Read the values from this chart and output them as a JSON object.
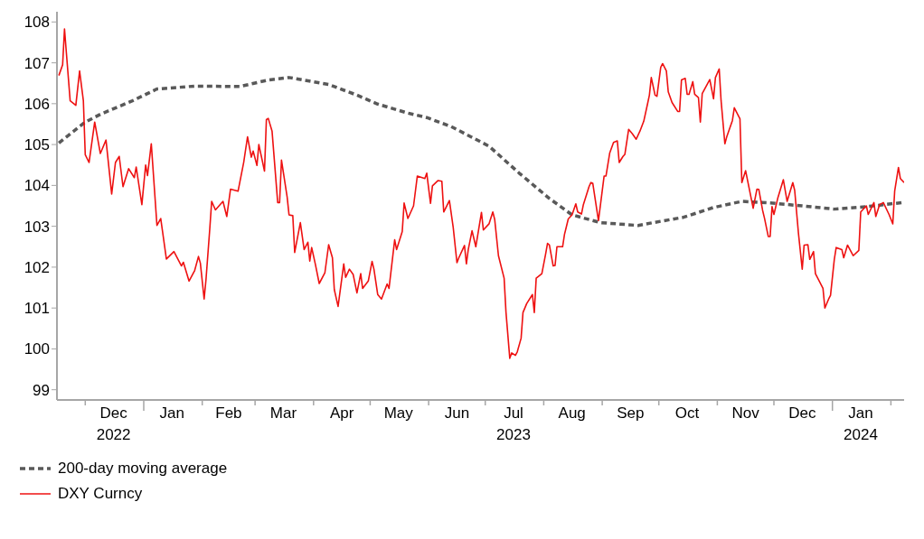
{
  "chart_data": {
    "type": "line",
    "xlim": [
      "2022-11-16",
      "2024-02-08"
    ],
    "ylim": [
      98.75,
      108.25
    ],
    "yticks": [
      99,
      100,
      101,
      102,
      103,
      104,
      105,
      106,
      107,
      108
    ],
    "xticks": [
      {
        "value": "2022-12-01",
        "label": null
      },
      {
        "value": "2022-12-16",
        "label": "Dec\n2022"
      },
      {
        "value": "2023-01-01",
        "label": null
      },
      {
        "value": "2023-01-16",
        "label": "Jan"
      },
      {
        "value": "2023-02-01",
        "label": null
      },
      {
        "value": "2023-02-15",
        "label": "Feb"
      },
      {
        "value": "2023-03-01",
        "label": null
      },
      {
        "value": "2023-03-16",
        "label": "Mar"
      },
      {
        "value": "2023-04-01",
        "label": null
      },
      {
        "value": "2023-04-16",
        "label": "Apr"
      },
      {
        "value": "2023-05-01",
        "label": null
      },
      {
        "value": "2023-05-16",
        "label": "May"
      },
      {
        "value": "2023-06-01",
        "label": null
      },
      {
        "value": "2023-06-16",
        "label": "Jun"
      },
      {
        "value": "2023-07-01",
        "label": null
      },
      {
        "value": "2023-07-16",
        "label": "Jul\n2023"
      },
      {
        "value": "2023-08-01",
        "label": null
      },
      {
        "value": "2023-08-16",
        "label": "Aug"
      },
      {
        "value": "2023-09-01",
        "label": null
      },
      {
        "value": "2023-09-16",
        "label": "Sep"
      },
      {
        "value": "2023-10-01",
        "label": null
      },
      {
        "value": "2023-10-16",
        "label": "Oct"
      },
      {
        "value": "2023-11-01",
        "label": null
      },
      {
        "value": "2023-11-16",
        "label": "Nov"
      },
      {
        "value": "2023-12-01",
        "label": null
      },
      {
        "value": "2023-12-16",
        "label": "Dec"
      },
      {
        "value": "2024-01-01",
        "label": null
      },
      {
        "value": "2024-01-16",
        "label": "Jan\n2024"
      },
      {
        "value": "2024-02-01",
        "label": null
      }
    ],
    "grid": false,
    "legend": "bottom left",
    "marker": "none",
    "series": [
      {
        "name": "200-day moving average",
        "color": "#595959",
        "line_style": "dashed",
        "x": [
          "2022-11-17",
          "2022-12-01",
          "2022-12-09",
          "2022-12-26",
          "2023-01-08",
          "2023-01-28",
          "2023-02-21",
          "2023-03-08",
          "2023-03-19",
          "2023-04-09",
          "2023-04-24",
          "2023-05-05",
          "2023-05-21",
          "2023-05-31",
          "2023-06-13",
          "2023-07-03",
          "2023-07-19",
          "2023-08-04",
          "2023-08-16",
          "2023-08-31",
          "2023-09-20",
          "2023-09-28",
          "2023-10-14",
          "2023-10-30",
          "2023-11-14",
          "2023-11-29",
          "2023-12-16",
          "2024-01-02",
          "2024-01-19",
          "2024-02-07"
        ],
        "values": [
          105.04,
          105.55,
          105.74,
          106.07,
          106.36,
          106.43,
          106.42,
          106.58,
          106.64,
          106.47,
          106.21,
          105.99,
          105.77,
          105.66,
          105.44,
          104.96,
          104.3,
          103.68,
          103.28,
          103.09,
          103.02,
          103.09,
          103.22,
          103.46,
          103.61,
          103.57,
          103.5,
          103.42,
          103.48,
          103.58
        ]
      },
      {
        "name": "DXY Curncy",
        "color": "#ee1111",
        "line_style": "solid",
        "x": [
          "2022-11-17",
          "2022-11-19",
          "2022-11-20",
          "2022-11-21",
          "2022-11-23",
          "2022-11-26",
          "2022-11-28",
          "2022-11-30",
          "2022-12-01",
          "2022-12-03",
          "2022-12-06",
          "2022-12-09",
          "2022-12-12",
          "2022-12-15",
          "2022-12-17",
          "2022-12-19",
          "2022-12-21",
          "2022-12-24",
          "2022-12-27",
          "2022-12-28",
          "2022-12-31",
          "2023-01-02",
          "2023-01-03",
          "2023-01-05",
          "2023-01-08",
          "2023-01-10",
          "2023-01-13",
          "2023-01-17",
          "2023-01-21",
          "2023-01-22",
          "2023-01-25",
          "2023-01-28",
          "2023-01-30",
          "2023-01-31",
          "2023-02-02",
          "2023-02-03",
          "2023-02-05",
          "2023-02-06",
          "2023-02-08",
          "2023-02-12",
          "2023-02-14",
          "2023-02-16",
          "2023-02-20",
          "2023-02-23",
          "2023-02-25",
          "2023-02-27",
          "2023-02-28",
          "2023-03-02",
          "2023-03-03",
          "2023-03-06",
          "2023-03-07",
          "2023-03-08",
          "2023-03-10",
          "2023-03-13",
          "2023-03-14",
          "2023-03-15",
          "2023-03-18",
          "2023-03-19",
          "2023-03-21",
          "2023-03-22",
          "2023-03-25",
          "2023-03-27",
          "2023-03-29",
          "2023-03-30",
          "2023-03-31",
          "2023-04-02",
          "2023-04-04",
          "2023-04-07",
          "2023-04-09",
          "2023-04-11",
          "2023-04-12",
          "2023-04-14",
          "2023-04-17",
          "2023-04-18",
          "2023-04-20",
          "2023-04-22",
          "2023-04-24",
          "2023-04-26",
          "2023-04-27",
          "2023-04-30",
          "2023-05-02",
          "2023-05-03",
          "2023-05-05",
          "2023-05-07",
          "2023-05-10",
          "2023-05-11",
          "2023-05-14",
          "2023-05-15",
          "2023-05-18",
          "2023-05-19",
          "2023-05-21",
          "2023-05-24",
          "2023-05-26",
          "2023-05-30",
          "2023-05-31",
          "2023-06-02",
          "2023-06-03",
          "2023-06-06",
          "2023-06-08",
          "2023-06-09",
          "2023-06-12",
          "2023-06-14",
          "2023-06-16",
          "2023-06-17",
          "2023-06-20",
          "2023-06-21",
          "2023-06-22",
          "2023-06-24",
          "2023-06-26",
          "2023-06-29",
          "2023-06-30",
          "2023-07-03",
          "2023-07-05",
          "2023-07-06",
          "2023-07-08",
          "2023-07-11",
          "2023-07-12",
          "2023-07-14",
          "2023-07-15",
          "2023-07-17",
          "2023-07-18",
          "2023-07-20",
          "2023-07-21",
          "2023-07-23",
          "2023-07-26",
          "2023-07-27",
          "2023-07-28",
          "2023-07-31",
          "2023-08-02",
          "2023-08-03",
          "2023-08-04",
          "2023-08-06",
          "2023-08-07",
          "2023-08-08",
          "2023-08-11",
          "2023-08-12",
          "2023-08-14",
          "2023-08-16",
          "2023-08-18",
          "2023-08-19",
          "2023-08-21",
          "2023-08-22",
          "2023-08-25",
          "2023-08-26",
          "2023-08-27",
          "2023-08-30",
          "2023-09-02",
          "2023-09-03",
          "2023-09-05",
          "2023-09-07",
          "2023-09-09",
          "2023-09-10",
          "2023-09-12",
          "2023-09-13",
          "2023-09-15",
          "2023-09-17",
          "2023-09-19",
          "2023-09-21",
          "2023-09-23",
          "2023-09-25",
          "2023-09-26",
          "2023-09-27",
          "2023-09-29",
          "2023-09-30",
          "2023-10-02",
          "2023-10-03",
          "2023-10-05",
          "2023-10-06",
          "2023-10-08",
          "2023-10-11",
          "2023-10-12",
          "2023-10-13",
          "2023-10-15",
          "2023-10-16",
          "2023-10-17",
          "2023-10-19",
          "2023-10-20",
          "2023-10-22",
          "2023-10-23",
          "2023-10-24",
          "2023-10-28",
          "2023-10-30",
          "2023-10-31",
          "2023-11-02",
          "2023-11-03",
          "2023-11-05",
          "2023-11-06",
          "2023-11-09",
          "2023-11-10",
          "2023-11-13",
          "2023-11-14",
          "2023-11-16",
          "2023-11-18",
          "2023-11-20",
          "2023-11-22",
          "2023-11-23",
          "2023-11-25",
          "2023-11-26",
          "2023-11-28",
          "2023-11-29",
          "2023-11-30",
          "2023-12-01",
          "2023-12-03",
          "2023-12-06",
          "2023-12-08",
          "2023-12-11",
          "2023-12-12",
          "2023-12-14",
          "2023-12-16",
          "2023-12-17",
          "2023-12-19",
          "2023-12-20",
          "2023-12-22",
          "2023-12-23",
          "2023-12-27",
          "2023-12-28",
          "2023-12-30",
          "2023-12-31",
          "2024-01-02",
          "2024-01-03",
          "2024-01-06",
          "2024-01-07",
          "2024-01-09",
          "2024-01-12",
          "2024-01-15",
          "2024-01-16",
          "2024-01-19",
          "2024-01-20",
          "2024-01-23",
          "2024-01-24",
          "2024-01-26",
          "2024-01-28",
          "2024-01-31",
          "2024-02-02",
          "2024-02-03",
          "2024-02-05",
          "2024-02-06",
          "2024-02-08"
        ],
        "values": [
          106.69,
          106.95,
          107.83,
          107.24,
          106.07,
          105.96,
          106.8,
          106.07,
          104.75,
          104.56,
          105.55,
          104.78,
          105.11,
          103.79,
          104.56,
          104.71,
          103.97,
          104.41,
          104.19,
          104.45,
          103.53,
          104.5,
          104.24,
          105.02,
          103.02,
          103.19,
          102.2,
          102.38,
          102.03,
          102.12,
          101.66,
          101.92,
          102.26,
          102.1,
          101.22,
          101.7,
          102.94,
          103.61,
          103.4,
          103.61,
          103.24,
          103.91,
          103.86,
          104.57,
          105.19,
          104.69,
          104.84,
          104.49,
          105.0,
          104.35,
          105.61,
          105.64,
          105.33,
          103.58,
          103.58,
          104.62,
          103.72,
          103.28,
          103.26,
          102.36,
          103.09,
          102.43,
          102.61,
          102.15,
          102.48,
          102.06,
          101.6,
          101.86,
          102.55,
          102.23,
          101.45,
          101.04,
          102.08,
          101.75,
          101.95,
          101.82,
          101.37,
          101.84,
          101.48,
          101.66,
          102.14,
          101.95,
          101.33,
          101.22,
          101.59,
          101.48,
          102.67,
          102.43,
          102.87,
          103.57,
          103.19,
          103.5,
          104.23,
          104.17,
          104.3,
          103.56,
          103.99,
          104.12,
          104.1,
          103.35,
          103.63,
          102.98,
          102.11,
          102.23,
          102.53,
          102.08,
          102.43,
          102.89,
          102.5,
          103.34,
          102.91,
          103.06,
          103.35,
          103.17,
          102.28,
          101.73,
          100.89,
          99.77,
          99.9,
          99.84,
          99.93,
          100.26,
          100.89,
          101.11,
          101.33,
          100.89,
          101.73,
          101.84,
          102.32,
          102.58,
          102.54,
          102.03,
          102.04,
          102.5,
          102.5,
          102.8,
          103.18,
          103.28,
          103.55,
          103.35,
          103.3,
          103.53,
          103.97,
          104.07,
          104.05,
          103.14,
          104.23,
          104.23,
          104.8,
          105.05,
          105.09,
          104.56,
          104.71,
          104.76,
          105.37,
          105.26,
          105.13,
          105.33,
          105.57,
          105.99,
          106.21,
          106.64,
          106.21,
          106.18,
          106.89,
          106.98,
          106.8,
          106.29,
          106.03,
          105.81,
          105.81,
          106.58,
          106.62,
          106.23,
          106.23,
          106.54,
          106.23,
          106.15,
          105.55,
          106.25,
          106.59,
          106.12,
          106.64,
          106.85,
          106.07,
          105.02,
          105.19,
          105.59,
          105.9,
          105.63,
          104.07,
          104.36,
          103.9,
          103.44,
          103.91,
          103.9,
          103.39,
          103.2,
          102.75,
          102.75,
          103.48,
          103.29,
          103.68,
          104.14,
          103.61,
          104.07,
          103.88,
          102.83,
          101.95,
          102.54,
          102.55,
          102.19,
          102.38,
          101.84,
          101.48,
          101.0,
          101.22,
          101.31,
          102.19,
          102.48,
          102.43,
          102.23,
          102.54,
          102.28,
          102.41,
          103.35,
          103.5,
          103.29,
          103.58,
          103.24,
          103.53,
          103.58,
          103.29,
          103.06,
          103.86,
          104.44,
          104.17,
          104.07
        ]
      }
    ]
  }
}
